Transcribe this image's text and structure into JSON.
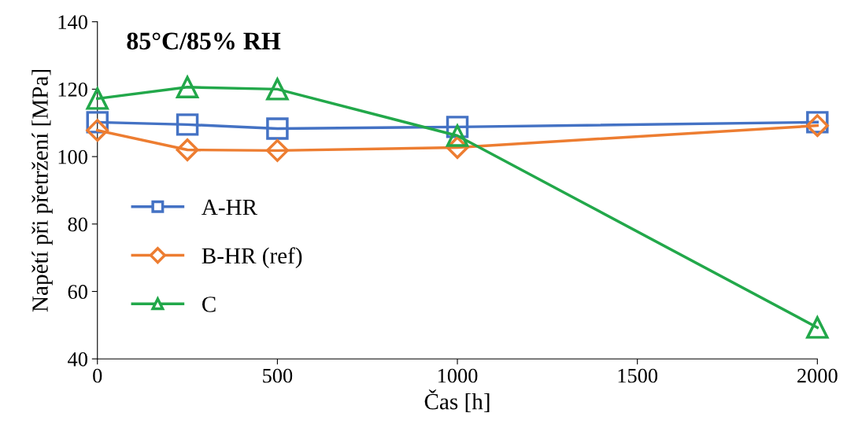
{
  "chart_data": {
    "type": "line",
    "title": "85°C/85% RH",
    "xlabel": "Čas [h]",
    "ylabel": "Napětí při přetržení [MPa]",
    "x": [
      0,
      250,
      500,
      1000,
      2000
    ],
    "series": [
      {
        "name": "A-HR",
        "color": "#4472c4",
        "marker": "square",
        "values": [
          110.2,
          109.5,
          108.3,
          108.8,
          110.2
        ]
      },
      {
        "name": "B-HR (ref)",
        "color": "#ed7d31",
        "marker": "diamond",
        "values": [
          107.8,
          102,
          101.8,
          102.7,
          109.2
        ]
      },
      {
        "name": "C",
        "color": "#22a84a",
        "marker": "triangle",
        "values": [
          117.2,
          120.6,
          120,
          106.2,
          49.3
        ]
      }
    ],
    "xlim": [
      0,
      2000
    ],
    "xticks": [
      0,
      500,
      1000,
      1500,
      2000
    ],
    "ylim": [
      40,
      140
    ],
    "yticks": [
      40,
      60,
      80,
      100,
      120,
      140
    ],
    "grid": false,
    "legend": "left",
    "line_style": "solid"
  }
}
